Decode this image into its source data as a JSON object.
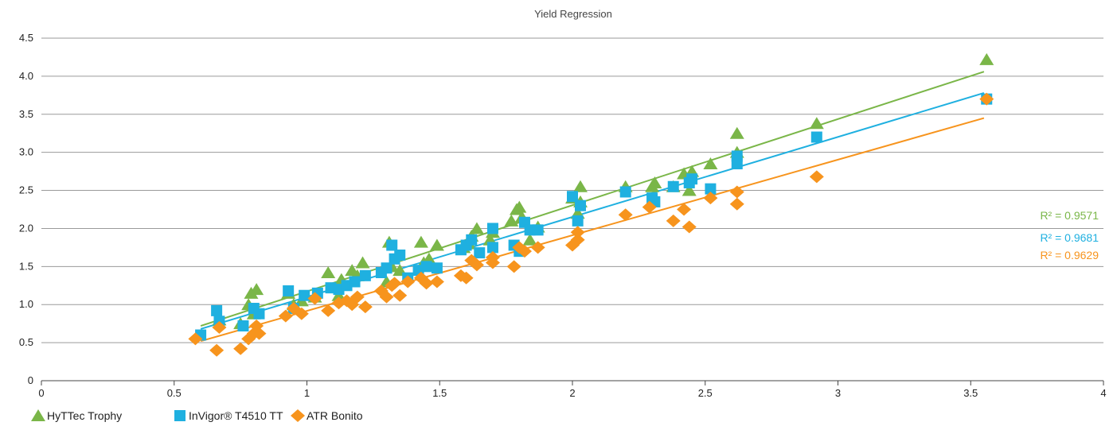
{
  "chart_data": {
    "type": "scatter",
    "title": "Yield Regression",
    "xlabel": "",
    "ylabel": "",
    "xlim": [
      0,
      4
    ],
    "ylim": [
      0,
      4.5
    ],
    "x_ticks": [
      "0",
      "0.5",
      "1",
      "1.5",
      "2",
      "2.5",
      "3",
      "3.5",
      "4"
    ],
    "y_ticks": [
      "0",
      "0.5",
      "1.0",
      "1.5",
      "2.0",
      "2.5",
      "3.0",
      "3.5",
      "4.0",
      "4.5"
    ],
    "grid": "horizontal",
    "legend_position": "bottom-left",
    "series": [
      {
        "name": "HyTTec Trophy",
        "marker": "triangle",
        "color": "#7ab648",
        "r2": "R² = 0.9571",
        "trendline": [
          [
            0.6,
            0.72
          ],
          [
            3.55,
            4.06
          ]
        ],
        "points": [
          [
            0.67,
            0.8
          ],
          [
            0.75,
            0.75
          ],
          [
            0.78,
            1.0
          ],
          [
            0.79,
            1.15
          ],
          [
            0.81,
            1.2
          ],
          [
            0.8,
            0.88
          ],
          [
            0.93,
            1.15
          ],
          [
            0.95,
            1.0
          ],
          [
            0.98,
            1.05
          ],
          [
            1.03,
            1.1
          ],
          [
            1.08,
            1.42
          ],
          [
            1.12,
            1.12
          ],
          [
            1.13,
            1.33
          ],
          [
            1.17,
            1.45
          ],
          [
            1.19,
            1.38
          ],
          [
            1.21,
            1.55
          ],
          [
            1.3,
            1.3
          ],
          [
            1.31,
            1.82
          ],
          [
            1.32,
            1.5
          ],
          [
            1.35,
            1.45
          ],
          [
            1.43,
            1.82
          ],
          [
            1.44,
            1.55
          ],
          [
            1.46,
            1.6
          ],
          [
            1.49,
            1.78
          ],
          [
            1.59,
            1.75
          ],
          [
            1.61,
            1.8
          ],
          [
            1.62,
            1.9
          ],
          [
            1.64,
            2.0
          ],
          [
            1.69,
            1.85
          ],
          [
            1.7,
            1.95
          ],
          [
            1.77,
            2.1
          ],
          [
            1.79,
            2.25
          ],
          [
            1.8,
            2.28
          ],
          [
            1.81,
            2.15
          ],
          [
            1.84,
            1.85
          ],
          [
            1.87,
            2.02
          ],
          [
            2.0,
            2.4
          ],
          [
            2.03,
            2.55
          ],
          [
            2.02,
            2.2
          ],
          [
            2.03,
            2.35
          ],
          [
            2.2,
            2.55
          ],
          [
            2.3,
            2.55
          ],
          [
            2.31,
            2.6
          ],
          [
            2.38,
            2.55
          ],
          [
            2.42,
            2.72
          ],
          [
            2.44,
            2.5
          ],
          [
            2.45,
            2.75
          ],
          [
            2.52,
            2.85
          ],
          [
            2.62,
            3.25
          ],
          [
            2.62,
            3.0
          ],
          [
            2.92,
            3.38
          ],
          [
            3.56,
            4.22
          ]
        ]
      },
      {
        "name": "InVigor® T4510 TT",
        "marker": "square",
        "color": "#1fb0e0",
        "r2": "R² = 0.9681",
        "trendline": [
          [
            0.6,
            0.68
          ],
          [
            3.55,
            3.78
          ]
        ],
        "points": [
          [
            0.6,
            0.6
          ],
          [
            0.66,
            0.92
          ],
          [
            0.67,
            0.78
          ],
          [
            0.76,
            0.72
          ],
          [
            0.8,
            0.95
          ],
          [
            0.82,
            0.88
          ],
          [
            0.93,
            1.18
          ],
          [
            0.95,
            0.95
          ],
          [
            0.99,
            1.12
          ],
          [
            1.04,
            1.15
          ],
          [
            1.09,
            1.22
          ],
          [
            1.12,
            1.2
          ],
          [
            1.15,
            1.25
          ],
          [
            1.18,
            1.3
          ],
          [
            1.22,
            1.38
          ],
          [
            1.28,
            1.42
          ],
          [
            1.3,
            1.48
          ],
          [
            1.32,
            1.78
          ],
          [
            1.33,
            1.6
          ],
          [
            1.35,
            1.65
          ],
          [
            1.38,
            1.35
          ],
          [
            1.42,
            1.45
          ],
          [
            1.45,
            1.5
          ],
          [
            1.49,
            1.48
          ],
          [
            1.58,
            1.72
          ],
          [
            1.6,
            1.78
          ],
          [
            1.62,
            1.85
          ],
          [
            1.65,
            1.68
          ],
          [
            1.7,
            2.0
          ],
          [
            1.7,
            1.75
          ],
          [
            1.78,
            1.78
          ],
          [
            1.8,
            1.7
          ],
          [
            1.82,
            2.08
          ],
          [
            1.84,
            1.98
          ],
          [
            1.87,
            1.98
          ],
          [
            2.0,
            2.42
          ],
          [
            2.02,
            2.1
          ],
          [
            2.03,
            2.3
          ],
          [
            2.2,
            2.48
          ],
          [
            2.3,
            2.4
          ],
          [
            2.31,
            2.35
          ],
          [
            2.38,
            2.55
          ],
          [
            2.44,
            2.6
          ],
          [
            2.45,
            2.65
          ],
          [
            2.52,
            2.52
          ],
          [
            2.62,
            2.95
          ],
          [
            2.62,
            2.85
          ],
          [
            2.92,
            3.2
          ],
          [
            3.56,
            3.7
          ]
        ]
      },
      {
        "name": "ATR Bonito",
        "marker": "diamond",
        "color": "#f7941d",
        "r2": "R² = 0.9629",
        "trendline": [
          [
            0.6,
            0.52
          ],
          [
            3.55,
            3.45
          ]
        ],
        "points": [
          [
            0.58,
            0.55
          ],
          [
            0.66,
            0.4
          ],
          [
            0.67,
            0.7
          ],
          [
            0.75,
            0.42
          ],
          [
            0.78,
            0.55
          ],
          [
            0.8,
            0.62
          ],
          [
            0.81,
            0.72
          ],
          [
            0.82,
            0.62
          ],
          [
            0.92,
            0.85
          ],
          [
            0.95,
            0.95
          ],
          [
            0.98,
            0.88
          ],
          [
            1.03,
            1.08
          ],
          [
            1.08,
            0.92
          ],
          [
            1.12,
            1.02
          ],
          [
            1.15,
            1.05
          ],
          [
            1.17,
            1.0
          ],
          [
            1.19,
            1.1
          ],
          [
            1.22,
            0.97
          ],
          [
            1.28,
            1.18
          ],
          [
            1.3,
            1.1
          ],
          [
            1.32,
            1.25
          ],
          [
            1.33,
            1.28
          ],
          [
            1.35,
            1.12
          ],
          [
            1.38,
            1.3
          ],
          [
            1.43,
            1.35
          ],
          [
            1.45,
            1.28
          ],
          [
            1.49,
            1.3
          ],
          [
            1.58,
            1.38
          ],
          [
            1.6,
            1.35
          ],
          [
            1.62,
            1.58
          ],
          [
            1.64,
            1.52
          ],
          [
            1.7,
            1.55
          ],
          [
            1.7,
            1.62
          ],
          [
            1.78,
            1.5
          ],
          [
            1.8,
            1.75
          ],
          [
            1.82,
            1.7
          ],
          [
            1.87,
            1.75
          ],
          [
            2.0,
            1.78
          ],
          [
            2.02,
            1.85
          ],
          [
            2.02,
            1.95
          ],
          [
            2.2,
            2.18
          ],
          [
            2.29,
            2.28
          ],
          [
            2.38,
            2.1
          ],
          [
            2.42,
            2.25
          ],
          [
            2.44,
            2.02
          ],
          [
            2.52,
            2.4
          ],
          [
            2.62,
            2.48
          ],
          [
            2.62,
            2.32
          ],
          [
            2.92,
            2.68
          ],
          [
            3.56,
            3.7
          ]
        ]
      }
    ]
  }
}
